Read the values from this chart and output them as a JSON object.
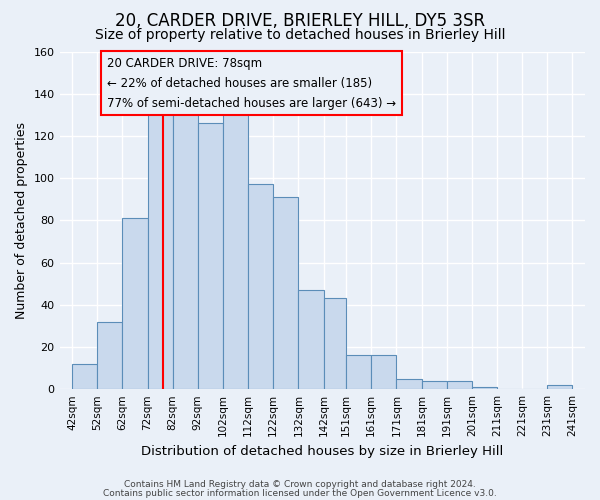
{
  "title": "20, CARDER DRIVE, BRIERLEY HILL, DY5 3SR",
  "subtitle": "Size of property relative to detached houses in Brierley Hill",
  "xlabel": "Distribution of detached houses by size in Brierley Hill",
  "ylabel": "Number of detached properties",
  "footnote1": "Contains HM Land Registry data © Crown copyright and database right 2024.",
  "footnote2": "Contains public sector information licensed under the Open Government Licence v3.0.",
  "bin_edges": [
    42,
    52,
    62,
    72,
    82,
    92,
    102,
    112,
    122,
    132,
    142,
    151,
    161,
    171,
    181,
    191,
    201,
    211,
    221,
    231,
    241
  ],
  "bar_heights": [
    12,
    32,
    81,
    131,
    131,
    126,
    131,
    97,
    91,
    47,
    43,
    16,
    16,
    5,
    4,
    4,
    1,
    0,
    0,
    2
  ],
  "tick_labels": [
    "42sqm",
    "52sqm",
    "62sqm",
    "72sqm",
    "82sqm",
    "92sqm",
    "102sqm",
    "112sqm",
    "122sqm",
    "132sqm",
    "142sqm",
    "151sqm",
    "161sqm",
    "171sqm",
    "181sqm",
    "191sqm",
    "201sqm",
    "211sqm",
    "221sqm",
    "231sqm",
    "241sqm"
  ],
  "tick_positions": [
    42,
    52,
    62,
    72,
    82,
    92,
    102,
    112,
    122,
    132,
    142,
    151,
    161,
    171,
    181,
    191,
    201,
    211,
    221,
    231,
    241
  ],
  "bar_color": "#c9d9ed",
  "bar_edge_color": "#5b8db8",
  "red_line_x": 78,
  "annotation_title": "20 CARDER DRIVE: 78sqm",
  "annotation_line1": "← 22% of detached houses are smaller (185)",
  "annotation_line2": "77% of semi-detached houses are larger (643) →",
  "ylim": [
    0,
    160
  ],
  "xlim": [
    37,
    246
  ],
  "yticks": [
    0,
    20,
    40,
    60,
    80,
    100,
    120,
    140,
    160
  ],
  "bar_color_fill": "#c9d9ed",
  "bar_edge_color_hex": "#5b8db8",
  "bg_color": "#eaf0f8",
  "grid_color": "#ffffff",
  "title_fontsize": 12,
  "subtitle_fontsize": 10,
  "annot_fontsize": 8.5,
  "axis_label_fontsize": 9,
  "xlabel_fontsize": 9.5,
  "tick_fontsize": 7.5,
  "footnote_fontsize": 6.5
}
